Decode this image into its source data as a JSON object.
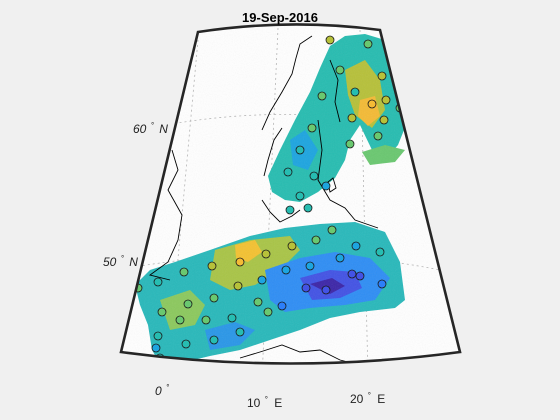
{
  "title": "19-Sep-2016",
  "lat_labels": [
    {
      "deg": "60",
      "suffix": "N"
    },
    {
      "deg": "50",
      "suffix": "N"
    }
  ],
  "lon_labels": [
    {
      "deg": "0",
      "suffix": ""
    },
    {
      "deg": "10",
      "suffix": "E"
    },
    {
      "deg": "20",
      "suffix": "E"
    }
  ],
  "colors": {
    "background": "#f0f0f0",
    "map_background": "#ffffff",
    "colormap": [
      "#3d26a8",
      "#4353e5",
      "#2d7ff9",
      "#1da5e0",
      "#27bdb1",
      "#6ac870",
      "#b7c13a",
      "#f4bb36",
      "#fadb22"
    ]
  },
  "chart_data": {
    "type": "map",
    "title": "19-Sep-2016",
    "projection": "conic",
    "lat_ticks": [
      50,
      60
    ],
    "lon_ticks": [
      0,
      10,
      20
    ],
    "grid": true
  }
}
